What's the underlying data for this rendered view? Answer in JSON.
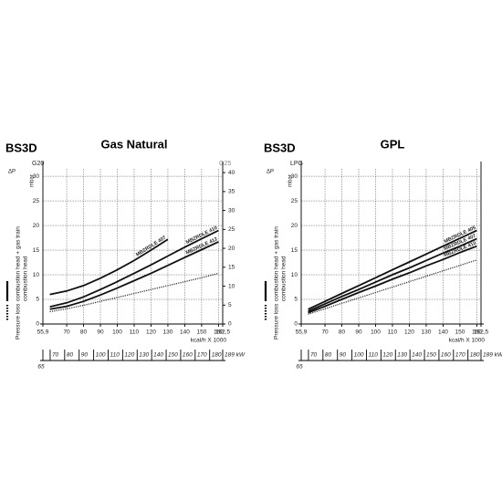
{
  "chart_data": [
    {
      "type": "line",
      "model": "BS3D",
      "title": "Gas Natural",
      "y_label": "ΔP",
      "y_unit": "mbar",
      "y_series_label": "G20",
      "y2_series_label": "G25",
      "x_label": "kcal/h X 1000",
      "legend_labels": [
        "Pressure loss",
        "combustion head + gas train",
        "combustion head"
      ],
      "x": [
        60,
        70,
        80,
        90,
        100,
        110,
        120,
        130,
        140,
        150,
        160
      ],
      "series": [
        {
          "name": "MBZRDLE 407",
          "color": "#111111",
          "style": "solid",
          "values": [
            6,
            6.7,
            7.8,
            9.3,
            11,
            12.9,
            15,
            17.2,
            null,
            null,
            null
          ]
        },
        {
          "name": "MBZRDLE 410",
          "color": "#111111",
          "style": "solid",
          "values": [
            3.5,
            4.3,
            5.5,
            7,
            8.6,
            10.3,
            12,
            13.8,
            15.6,
            17.3,
            19
          ]
        },
        {
          "name": "MBZRDLE 412",
          "color": "#111111",
          "style": "solid",
          "values": [
            3,
            3.6,
            4.6,
            5.9,
            7.3,
            8.8,
            10.3,
            11.9,
            13.5,
            15.1,
            16.7
          ]
        },
        {
          "color": "#333333",
          "style": "dotted",
          "values": [
            2.5,
            3.1,
            3.8,
            4.6,
            5.4,
            6.2,
            7,
            7.8,
            8.6,
            9.4,
            10.3
          ]
        }
      ],
      "xlim": [
        55.9,
        162.5
      ],
      "xticks": [
        {
          "value": 55.9,
          "label": "55,9"
        },
        70,
        80,
        90,
        100,
        110,
        120,
        130,
        140,
        150,
        160,
        {
          "value": 162.5,
          "label": "162,5"
        }
      ],
      "x2lim": [
        65,
        189
      ],
      "x2ticks": [
        65,
        70,
        80,
        90,
        100,
        110,
        120,
        130,
        140,
        150,
        160,
        170,
        180,
        {
          "value": 189,
          "label": "189 kW"
        }
      ],
      "ylim": [
        0,
        31.5
      ],
      "yticks": [
        0,
        5,
        10,
        15,
        20,
        25,
        30
      ],
      "y2lim": [
        0,
        41
      ],
      "y2ticks": [
        0,
        5,
        10,
        15,
        20,
        25,
        30,
        35,
        40
      ],
      "grid": true
    },
    {
      "type": "line",
      "model": "BS3D",
      "title": "GPL",
      "y_label": "ΔP",
      "y_unit": "mbar",
      "y_series_label": "LPG",
      "x_label": "kcal/h X 1000",
      "legend_labels": [
        "Pressure loss",
        "combustion head + gas train",
        "combustion head"
      ],
      "x": [
        60,
        70,
        80,
        90,
        100,
        110,
        120,
        130,
        140,
        150,
        160
      ],
      "series": [
        {
          "name": "MBZRDLE 405",
          "color": "#111111",
          "style": "solid",
          "values": [
            3,
            4.6,
            6.2,
            7.8,
            9.4,
            11,
            12.6,
            14.2,
            15.8,
            17.4,
            19
          ]
        },
        {
          "name": "MBZRDLE 407",
          "color": "#111111",
          "style": "solid",
          "values": [
            2.6,
            4.1,
            5.6,
            7,
            8.5,
            10,
            11.4,
            12.9,
            14.4,
            15.8,
            17.3
          ]
        },
        {
          "name": "MBZRDLE 410",
          "color": "#111111",
          "style": "solid",
          "values": [
            2.3,
            3.6,
            5,
            6.4,
            7.7,
            9.1,
            10.4,
            11.8,
            13.1,
            14.5,
            15.8
          ]
        },
        {
          "color": "#333333",
          "style": "dotted",
          "values": [
            2,
            3.1,
            4.2,
            5.3,
            6.4,
            7.5,
            8.6,
            9.7,
            10.8,
            11.9,
            13
          ]
        }
      ],
      "xlim": [
        55.9,
        162.5
      ],
      "xticks": [
        {
          "value": 55.9,
          "label": "55,9"
        },
        70,
        80,
        90,
        100,
        110,
        120,
        130,
        140,
        150,
        160,
        {
          "value": 162.5,
          "label": "162,5"
        }
      ],
      "x2lim": [
        65,
        189
      ],
      "x2ticks": [
        65,
        70,
        80,
        90,
        100,
        110,
        120,
        130,
        140,
        150,
        160,
        170,
        180,
        {
          "value": 189,
          "label": "189 kW"
        }
      ],
      "ylim": [
        0,
        31.5
      ],
      "yticks": [
        0,
        5,
        10,
        15,
        20,
        25,
        30
      ],
      "grid": true
    }
  ]
}
